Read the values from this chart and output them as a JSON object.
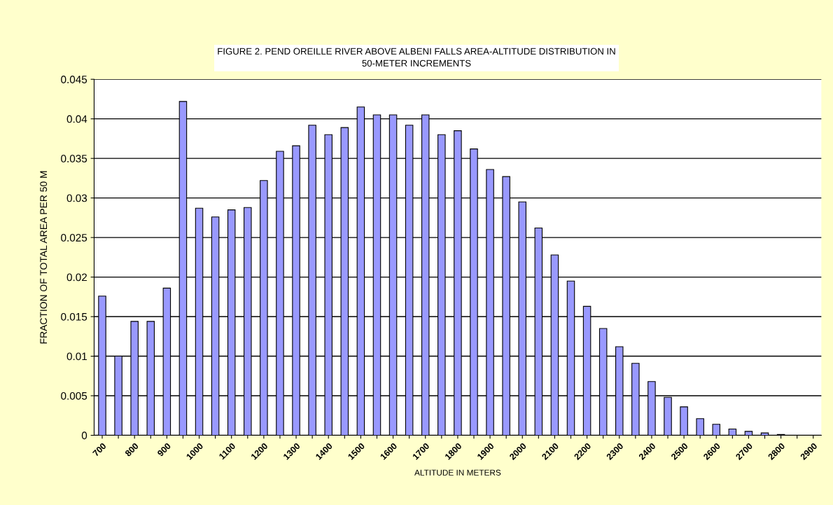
{
  "chart_data": {
    "type": "bar",
    "title": "FIGURE 2. PEND OREILLE RIVER ABOVE ALBENI FALLS AREA-ALTITUDE DISTRIBUTION IN\n50-METER INCREMENTS",
    "xlabel": "ALTITUDE IN METERS",
    "ylabel": "FRACTION OF TOTAL AREA PER 50 M",
    "categories": [
      "700",
      null,
      "800",
      null,
      "900",
      null,
      "1000",
      null,
      "1100",
      null,
      "1200",
      null,
      "1300",
      null,
      "1400",
      null,
      "1500",
      null,
      "1600",
      null,
      "1700",
      null,
      "1800",
      null,
      "1900",
      null,
      "2000",
      null,
      "2100",
      null,
      "2200",
      null,
      "2300",
      null,
      "2400",
      null,
      "2500",
      null,
      "2600",
      null,
      "2700",
      null,
      "2800",
      null,
      "2900"
    ],
    "values": [
      0.0176,
      0.01,
      0.0144,
      0.0144,
      0.0186,
      0.0422,
      0.0287,
      0.0276,
      0.0285,
      0.0288,
      0.0322,
      0.0359,
      0.0366,
      0.0392,
      0.038,
      0.0389,
      0.0415,
      0.0405,
      0.0405,
      0.0392,
      0.0405,
      0.038,
      0.0385,
      0.0362,
      0.0336,
      0.0327,
      0.0295,
      0.0262,
      0.0228,
      0.0195,
      0.0163,
      0.0135,
      0.0112,
      0.0091,
      0.0068,
      0.0048,
      0.0036,
      0.0021,
      0.0014,
      0.0008,
      0.0005,
      0.0003,
      0.0001,
      0,
      0
    ],
    "color": "#9999ff",
    "ylim": [
      0,
      0.045
    ],
    "yticks": [
      0,
      0.005,
      0.01,
      0.015,
      0.02,
      0.025,
      0.03,
      0.035,
      0.04,
      0.045
    ],
    "grid": "y"
  }
}
